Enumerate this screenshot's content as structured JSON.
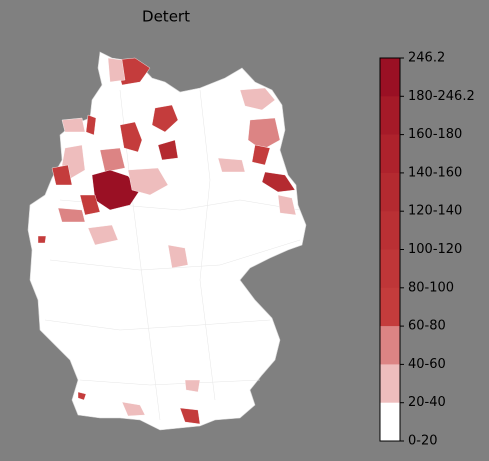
{
  "map": {
    "title": "Detert",
    "colorbar": {
      "labels": [
        "246.2",
        "180-246.2",
        "160-180",
        "140-160",
        "120-140",
        "100-120",
        "80-100",
        "60-80",
        "40-60",
        "20-40",
        "0-20"
      ],
      "colors": [
        "#9a1024",
        "#a51a28",
        "#ae222c",
        "#b42a30",
        "#ba3034",
        "#bf3638",
        "#c43c3c",
        "#dc8484",
        "#eebdbd",
        "#ffffff"
      ]
    }
  }
}
